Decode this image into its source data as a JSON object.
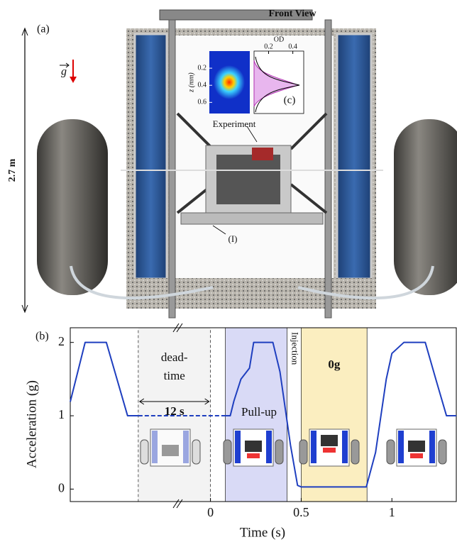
{
  "panel_a": {
    "label": "(a)",
    "title": "Front View",
    "height_label": "2.7 m",
    "gravity_label": "g",
    "experiment_label": "Experiment",
    "item_label": "(I)"
  },
  "inset_c": {
    "label": "(c)",
    "x_axis_label": "OD",
    "xlim": [
      0.08,
      0.49
    ],
    "xticks": [
      0.2,
      0.4
    ],
    "y_axis_label": "z (mm)",
    "ylim": [
      0,
      0.73
    ],
    "yticks": [
      0.2,
      0.4,
      0.6
    ]
  },
  "chart_data": {
    "type": "line",
    "label": "(b)",
    "y_label": "Acceleration (g)",
    "x_label": "Time (s)",
    "xlim": [
      -0.773,
      1.355
    ],
    "ylim": [
      -0.17,
      2.2
    ],
    "xticks": [
      0,
      0.5,
      1
    ],
    "yticks": [
      0,
      1,
      2
    ],
    "series": [
      {
        "color": "#1f3fbf",
        "line_style": "solid",
        "x": [
          -0.773,
          -0.691,
          -0.574,
          -0.457,
          -0.398,
          -0.2,
          0.07,
          0.109,
          0.129,
          0.168,
          0.215,
          0.238,
          0.344,
          0.383,
          0.441,
          0.48,
          0.5,
          0.859,
          0.91,
          0.969,
          1.0,
          1.066,
          1.184,
          1.242,
          1.301,
          1.355
        ],
        "values": [
          1.19,
          2,
          2,
          1,
          1,
          null,
          1,
          1,
          1.2,
          1.5,
          1.65,
          2,
          2,
          1.6,
          0.6,
          0.05,
          0.03,
          0.03,
          0.5,
          1.5,
          1.85,
          2,
          2,
          1.5,
          1,
          1
        ]
      },
      {
        "color": "#1f3fbf",
        "line_style": "dashed",
        "x": [
          -0.398,
          0.07
        ],
        "values": [
          1,
          1
        ]
      }
    ],
    "regions": [
      {
        "label": [
          "dead-",
          "time"
        ],
        "sublabel": "12 s",
        "x": [
          -0.398,
          0
        ],
        "color": "#f3f3f3"
      },
      {
        "label": "Pull-up",
        "x": [
          0.082,
          0.422
        ],
        "color": "#d9daf6"
      },
      {
        "label": "0g",
        "x": [
          0.5,
          0.863
        ],
        "color": "#fbeec0"
      }
    ],
    "annotation": {
      "text": "Injection",
      "x": 0.461
    }
  }
}
